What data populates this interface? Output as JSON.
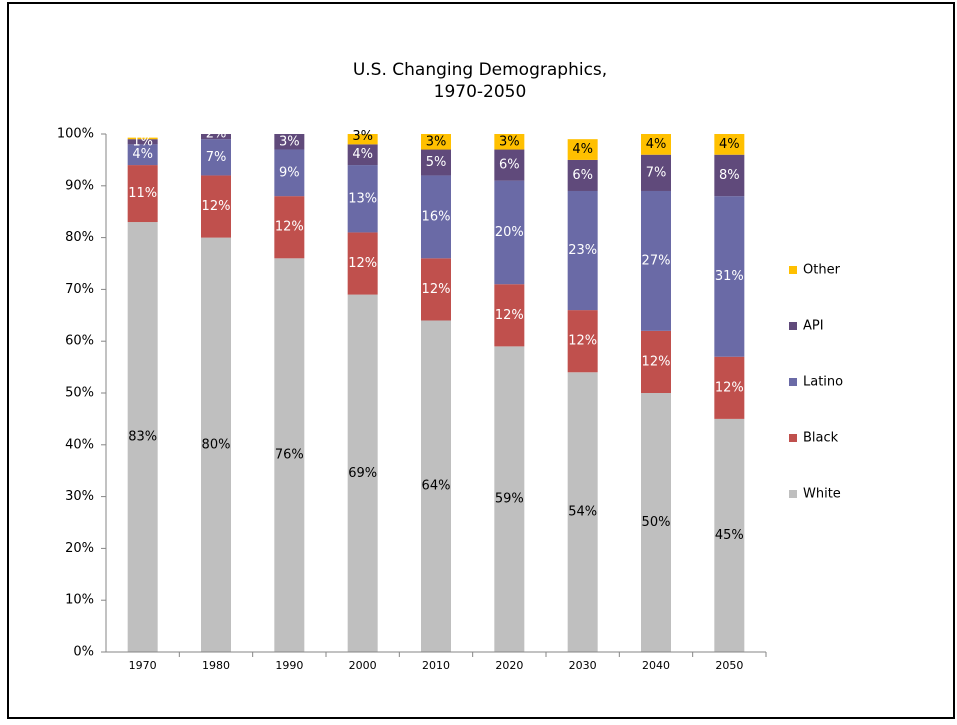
{
  "chart_data": {
    "type": "stacked_bar",
    "title": [
      "U.S. Changing Demographics,",
      "1970-2050"
    ],
    "categories": [
      "1970",
      "1980",
      "1990",
      "2000",
      "2010",
      "2020",
      "2030",
      "2040",
      "2050"
    ],
    "series": [
      {
        "name": "White",
        "color": "#bfbfbf",
        "values": [
          83,
          80,
          76,
          69,
          64,
          59,
          54,
          50,
          45
        ],
        "value_labels": [
          "83%",
          "80%",
          "76%",
          "69%",
          "64%",
          "59%",
          "54%",
          "50%",
          "45%"
        ]
      },
      {
        "name": "Black",
        "color": "#c0504d",
        "values": [
          11,
          12,
          12,
          12,
          12,
          12,
          12,
          12,
          12
        ],
        "value_labels": [
          "11%",
          "12%",
          "12%",
          "12%",
          "12%",
          "12%",
          "12%",
          "12%",
          "12%"
        ]
      },
      {
        "name": "Latino",
        "color": "#6a6aa6",
        "values": [
          4,
          7,
          9,
          13,
          16,
          20,
          23,
          27,
          31
        ],
        "value_labels": [
          "4%",
          "7%",
          "9%",
          "13%",
          "16%",
          "20%",
          "23%",
          "27%",
          "31%"
        ]
      },
      {
        "name": "API",
        "color": "#604a7b",
        "values": [
          1,
          2,
          3,
          4,
          5,
          6,
          6,
          7,
          8
        ],
        "value_labels": [
          "1%",
          "2%",
          "3%",
          "4%",
          "5%",
          "6%",
          "6%",
          "7%",
          "8%"
        ]
      },
      {
        "name": "Other",
        "color": "#ffc000",
        "values": [
          0.3,
          0.5,
          0.7,
          3,
          3,
          3,
          4,
          4,
          4
        ],
        "value_labels": [
          null,
          null,
          null,
          "3%",
          "3%",
          "3%",
          "4%",
          "4%",
          "4%"
        ]
      }
    ],
    "ylim": [
      0,
      100
    ],
    "yticks": [
      {
        "value": 0,
        "label": "0%"
      },
      {
        "value": 10,
        "label": "10%"
      },
      {
        "value": 20,
        "label": "20%"
      },
      {
        "value": 30,
        "label": "30%"
      },
      {
        "value": 40,
        "label": "40%"
      },
      {
        "value": 50,
        "label": "50%"
      },
      {
        "value": 60,
        "label": "60%"
      },
      {
        "value": 70,
        "label": "70%"
      },
      {
        "value": 80,
        "label": "80%"
      },
      {
        "value": 90,
        "label": "90%"
      },
      {
        "value": 100,
        "label": "100%"
      }
    ],
    "legend": "right"
  }
}
